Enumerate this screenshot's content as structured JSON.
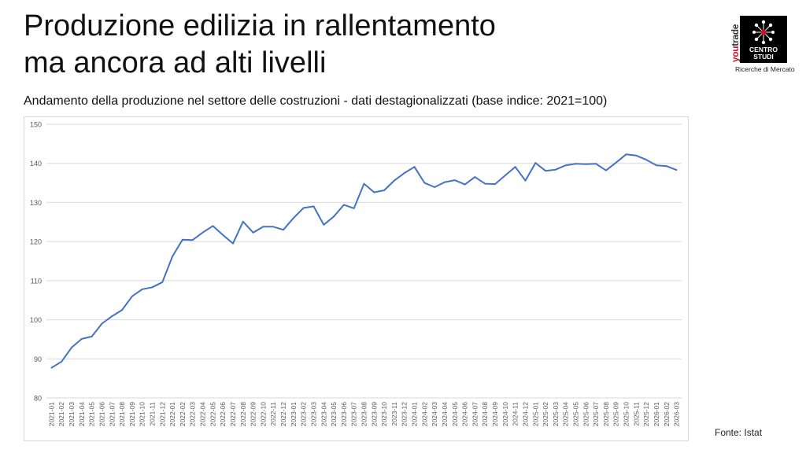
{
  "title_line1": "Produzione edilizia in rallentamento",
  "title_line2": "ma ancora ad alti livelli",
  "subtitle": "Andamento della produzione nel settore delle costruzioni -  dati destagionalizzati (base indice: 2021=100)",
  "source": "Fonte: Istat",
  "logo": {
    "brand_prefix": "you",
    "brand_suffix": "trade",
    "line1": "CENTRO",
    "line2": "STUDI",
    "tagline": "Ricerche di Mercato"
  },
  "colors": {
    "line": "#4472c4",
    "grid": "#d9d9d9",
    "text": "#595959",
    "brand_red": "#d0112b"
  },
  "chart_data": {
    "type": "line",
    "title": "Andamento della produzione nel settore delle costruzioni -  dati destagionalizzati (base indice: 2021=100)",
    "xlabel": "",
    "ylabel": "",
    "ylim": [
      80,
      150
    ],
    "yticks": [
      80,
      90,
      100,
      110,
      120,
      130,
      140,
      150
    ],
    "grid": true,
    "legend": "none",
    "categories": [
      "2021-01",
      "2021-02",
      "2021-03",
      "2021-04",
      "2021-05",
      "2021-06",
      "2021-07",
      "2021-08",
      "2021-09",
      "2021-10",
      "2021-11",
      "2021-12",
      "2022-01",
      "2022-02",
      "2022-03",
      "2022-04",
      "2022-05",
      "2022-06",
      "2022-07",
      "2022-08",
      "2022-09",
      "2022-10",
      "2022-11",
      "2022-12",
      "2023-01",
      "2023-02",
      "2023-03",
      "2023-04",
      "2023-05",
      "2023-06",
      "2023-07",
      "2023-08",
      "2023-09",
      "2023-10",
      "2023-11",
      "2023-12",
      "2024-01",
      "2024-02",
      "2024-03",
      "2024-04",
      "2024-05",
      "2024-06",
      "2024-07",
      "2024-08",
      "2024-09",
      "2024-10",
      "2024-11",
      "2024-12",
      "2025-01",
      "2025-02",
      "2025-03",
      "2025-04",
      "2025-05",
      "2025-06",
      "2025-07",
      "2025-08",
      "2025-09",
      "2025-10",
      "2025-11",
      "2025-12",
      "2026-01",
      "2026-02",
      "2026-03"
    ],
    "series": [
      {
        "values": [
          87.7,
          89.3,
          92.9,
          95.1,
          95.7,
          99.0,
          100.9,
          102.5,
          106.0,
          107.8,
          108.3,
          109.6,
          116.2,
          120.5,
          120.4,
          122.3,
          124.0,
          121.7,
          119.5,
          125.1,
          122.3,
          123.8,
          123.8,
          123.0,
          126.0,
          128.6,
          129.0,
          124.3,
          126.4,
          129.4,
          128.5,
          134.8,
          132.6,
          133.1,
          135.6,
          137.5,
          139.1,
          135.0,
          133.9,
          135.2,
          135.7,
          134.6,
          136.5,
          134.8,
          134.7,
          136.9,
          139.1,
          135.6,
          140.1,
          138.1,
          138.4,
          139.5,
          139.9,
          139.8,
          139.9,
          138.2,
          140.2,
          142.3,
          142.0,
          140.9,
          139.5,
          139.3,
          138.3
        ]
      }
    ]
  }
}
